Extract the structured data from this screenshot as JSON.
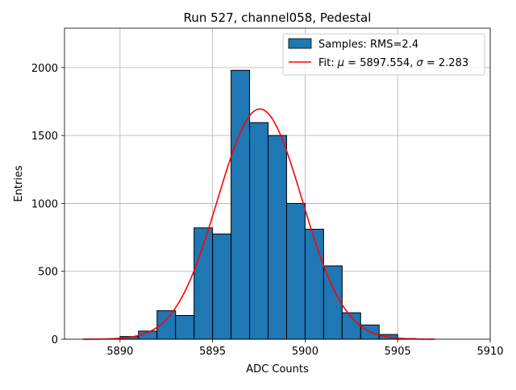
{
  "chart_data": {
    "type": "bar",
    "title": "Run 527, channel058, Pedestal",
    "xlabel": "ADC Counts",
    "ylabel": "Entries",
    "xlim": [
      5887,
      5910
    ],
    "ylim": [
      0,
      2290
    ],
    "grid": true,
    "legend_placement": "top-right",
    "x_ticks": [
      5890,
      5895,
      5900,
      5905,
      5910
    ],
    "y_ticks": [
      0,
      500,
      1000,
      1500,
      2000
    ],
    "colors": {
      "bar_fill": "#1f77b4",
      "bar_edge": "#000000",
      "fit_line": "#ff0000",
      "grid": "#b0b0b0"
    },
    "histogram": {
      "name": "Samples: RMS=2.4",
      "bin_width": 1,
      "bins": [
        {
          "x": 5888,
          "count": 0
        },
        {
          "x": 5889,
          "count": 2
        },
        {
          "x": 5890,
          "count": 20
        },
        {
          "x": 5891,
          "count": 60
        },
        {
          "x": 5892,
          "count": 210
        },
        {
          "x": 5893,
          "count": 175
        },
        {
          "x": 5894,
          "count": 820
        },
        {
          "x": 5895,
          "count": 775
        },
        {
          "x": 5896,
          "count": 1980
        },
        {
          "x": 5897,
          "count": 1595
        },
        {
          "x": 5898,
          "count": 1500
        },
        {
          "x": 5899,
          "count": 1000
        },
        {
          "x": 5900,
          "count": 810
        },
        {
          "x": 5901,
          "count": 540
        },
        {
          "x": 5902,
          "count": 195
        },
        {
          "x": 5903,
          "count": 105
        },
        {
          "x": 5904,
          "count": 35
        },
        {
          "x": 5905,
          "count": 5
        },
        {
          "x": 5906,
          "count": 0
        }
      ]
    },
    "fit": {
      "label_prefix": "Fit: ",
      "mu_symbol": "μ",
      "mu_value": " = 5897.554, ",
      "sigma_symbol": "σ",
      "sigma_value": " = 2.283",
      "mu": 5897.554,
      "sigma": 2.283,
      "amplitude": 1695,
      "x_range": [
        5888,
        5907
      ]
    }
  }
}
